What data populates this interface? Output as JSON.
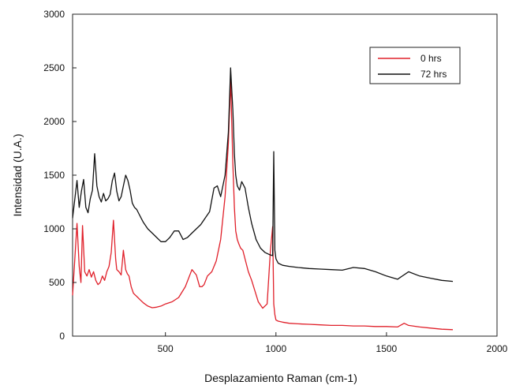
{
  "chart_data": {
    "type": "line",
    "title": "",
    "xlabel": "Desplazamiento Raman (cm-1)",
    "ylabel": "Intensidad (U.A.)",
    "xlim": [
      80,
      2000
    ],
    "ylim": [
      0,
      3000
    ],
    "xticks": [
      500,
      1000,
      1500,
      2000
    ],
    "xtick_labels": [
      "500",
      "1000",
      "1500",
      "2000"
    ],
    "yticks": [
      0,
      500,
      1000,
      1500,
      2000,
      2500,
      3000
    ],
    "ytick_labels": [
      "0",
      "500",
      "1000",
      "1500",
      "2000",
      "2500",
      "3000"
    ],
    "grid": false,
    "legend_position": "top-right",
    "series": [
      {
        "name": "0 hrs",
        "color": "#e0202a",
        "x": [
          80,
          100,
          110,
          118,
          125,
          135,
          145,
          155,
          165,
          175,
          185,
          195,
          205,
          215,
          225,
          235,
          245,
          255,
          265,
          275,
          280,
          290,
          300,
          310,
          320,
          328,
          335,
          345,
          355,
          365,
          375,
          385,
          400,
          420,
          440,
          460,
          480,
          500,
          530,
          560,
          590,
          620,
          640,
          655,
          665,
          675,
          690,
          710,
          730,
          750,
          770,
          785,
          795,
          805,
          812,
          818,
          825,
          832,
          840,
          850,
          860,
          875,
          890,
          905,
          920,
          940,
          960,
          975,
          985,
          990,
          995,
          1000,
          1010,
          1030,
          1060,
          1100,
          1150,
          1200,
          1250,
          1300,
          1350,
          1400,
          1450,
          1500,
          1550,
          1580,
          1600,
          1650,
          1700,
          1750,
          1800
        ],
        "values": [
          380,
          1050,
          650,
          500,
          1030,
          600,
          560,
          620,
          550,
          600,
          520,
          480,
          500,
          560,
          520,
          600,
          650,
          780,
          1080,
          720,
          620,
          600,
          570,
          800,
          620,
          580,
          560,
          460,
          400,
          380,
          360,
          340,
          310,
          280,
          265,
          270,
          280,
          300,
          320,
          360,
          460,
          620,
          570,
          460,
          460,
          480,
          560,
          600,
          700,
          900,
          1300,
          1800,
          2400,
          1600,
          1200,
          980,
          900,
          860,
          820,
          800,
          720,
          600,
          520,
          420,
          320,
          260,
          300,
          800,
          1020,
          300,
          200,
          150,
          140,
          130,
          120,
          115,
          110,
          105,
          100,
          100,
          95,
          95,
          90,
          90,
          85,
          120,
          100,
          85,
          75,
          65,
          60
        ]
      },
      {
        "name": "72 hrs",
        "color": "#111111",
        "x": [
          80,
          100,
          110,
          120,
          130,
          140,
          150,
          160,
          170,
          180,
          190,
          200,
          210,
          220,
          230,
          240,
          250,
          260,
          270,
          280,
          290,
          300,
          310,
          320,
          330,
          340,
          350,
          360,
          370,
          380,
          390,
          400,
          420,
          440,
          460,
          480,
          500,
          520,
          540,
          560,
          580,
          600,
          620,
          640,
          660,
          680,
          700,
          720,
          735,
          750,
          770,
          785,
          795,
          805,
          812,
          818,
          825,
          835,
          845,
          860,
          875,
          890,
          910,
          930,
          950,
          970,
          985,
          990,
          995,
          1000,
          1010,
          1030,
          1060,
          1100,
          1150,
          1200,
          1250,
          1300,
          1350,
          1400,
          1450,
          1500,
          1550,
          1600,
          1650,
          1700,
          1750,
          1800
        ],
        "values": [
          1100,
          1450,
          1200,
          1350,
          1460,
          1200,
          1150,
          1280,
          1360,
          1700,
          1400,
          1300,
          1250,
          1330,
          1260,
          1280,
          1320,
          1450,
          1520,
          1350,
          1260,
          1300,
          1400,
          1500,
          1450,
          1360,
          1240,
          1200,
          1180,
          1140,
          1100,
          1060,
          1000,
          960,
          920,
          880,
          880,
          920,
          980,
          980,
          900,
          920,
          960,
          1000,
          1040,
          1100,
          1160,
          1380,
          1400,
          1300,
          1500,
          1900,
          2500,
          2100,
          1700,
          1500,
          1400,
          1360,
          1440,
          1380,
          1200,
          1050,
          900,
          820,
          780,
          760,
          750,
          1720,
          800,
          720,
          680,
          660,
          650,
          640,
          630,
          625,
          620,
          615,
          640,
          630,
          600,
          560,
          530,
          600,
          560,
          540,
          520,
          510
        ]
      }
    ]
  }
}
